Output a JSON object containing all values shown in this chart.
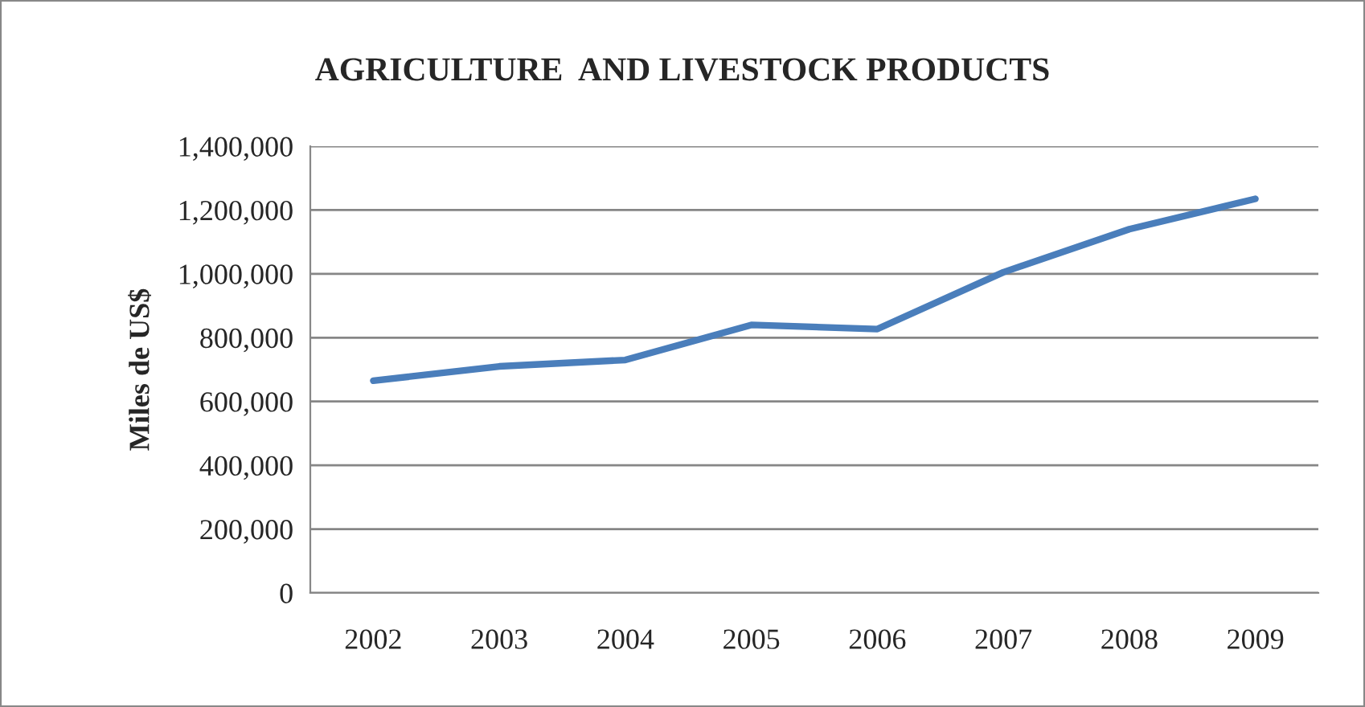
{
  "chart_data": {
    "type": "line",
    "title": "AGRICULTURE  AND LIVESTOCK PRODUCTS",
    "ylabel": "Miles de US$",
    "categories": [
      "2002",
      "2003",
      "2004",
      "2005",
      "2006",
      "2007",
      "2008",
      "2009"
    ],
    "series": [
      {
        "color": "#4a7ebb",
        "values": [
          665000,
          710000,
          730000,
          840000,
          827000,
          1005000,
          1140000,
          1235000
        ]
      }
    ],
    "ylim": [
      0,
      1400000
    ],
    "yticks": [
      {
        "value": 0,
        "label": "0"
      },
      {
        "value": 200000,
        "label": "200,000"
      },
      {
        "value": 400000,
        "label": "400,000"
      },
      {
        "value": 600000,
        "label": "600,000"
      },
      {
        "value": 800000,
        "label": "800,000"
      },
      {
        "value": 1000000,
        "label": "1,000,000"
      },
      {
        "value": 1200000,
        "label": "1,200,000"
      },
      {
        "value": 1400000,
        "label": "1,400,000"
      }
    ],
    "grid": "y",
    "marker": "none",
    "line_style": "solid"
  }
}
